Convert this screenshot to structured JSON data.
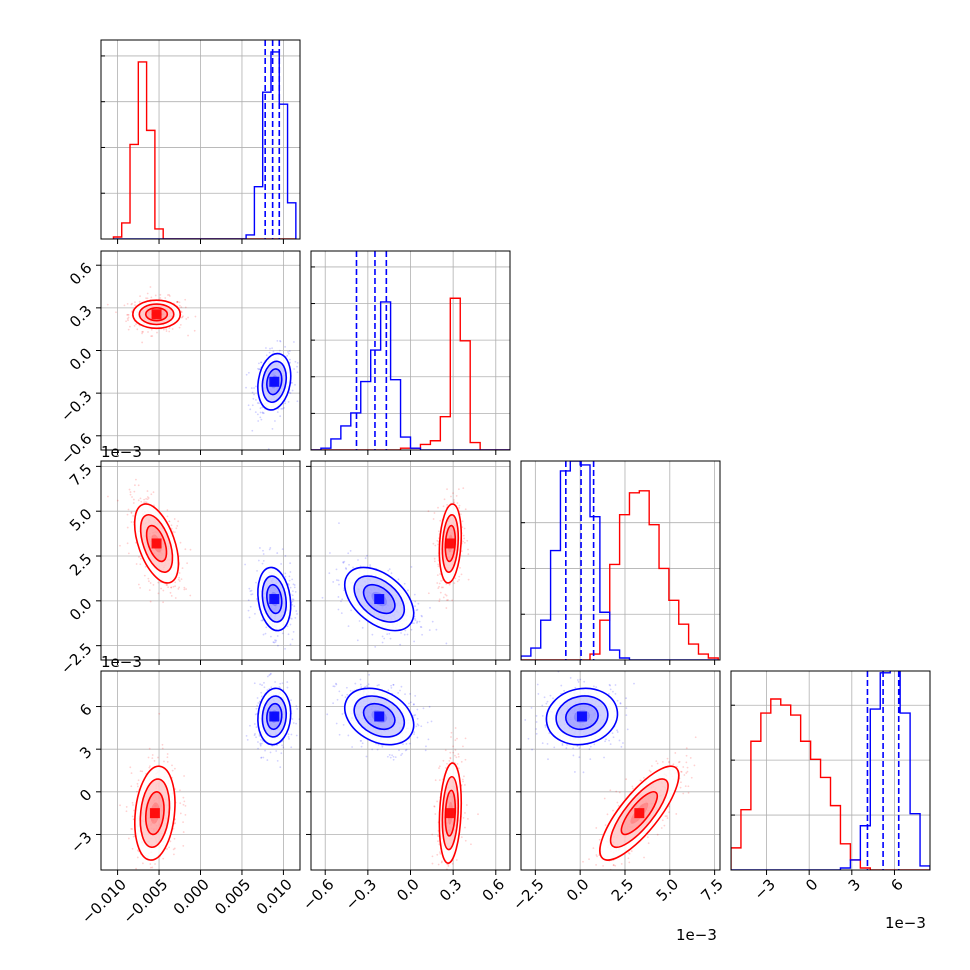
{
  "chart_data": {
    "type": "corner",
    "dimensions": 4,
    "series": [
      {
        "name": "",
        "color": "#ff0000"
      },
      {
        "name": "",
        "color": "#0000ff"
      }
    ],
    "grid": true,
    "tick_labels": {
      "x": [
        [
          "−0.010",
          "−0.005",
          "0.000",
          "0.005",
          "0.010"
        ],
        [
          "−0.6",
          "−0.3",
          "0.0",
          "0.3",
          "0.6"
        ],
        [
          "−2.5",
          "0.0",
          "2.5",
          "5.0",
          "7.5"
        ],
        [
          "−3",
          "0",
          "3",
          "6"
        ]
      ],
      "y": [
        [],
        [
          "−0.6",
          "−0.3",
          "0.0",
          "0.3",
          "0.6"
        ],
        [
          "−2.5",
          "0.0",
          "2.5",
          "5.0",
          "7.5"
        ],
        [
          "−3",
          "0",
          "3",
          "6"
        ]
      ]
    },
    "offset_labels": {
      "row2_y": "1e−3",
      "row3_y": "1e−3",
      "col2_x": "1e−3",
      "col3_x": "1e−3"
    },
    "ranges": [
      [
        -0.012,
        0.012
      ],
      [
        -0.7,
        0.7
      ],
      [
        -3.3,
        7.8
      ],
      [
        -5.5,
        8.5
      ]
    ],
    "marginals": [
      {
        "edges": [
          -0.0105,
          -0.0095,
          -0.0085,
          -0.0075,
          -0.0065,
          -0.0055,
          -0.0045,
          -0.0035,
          -0.0025,
          -0.0015,
          -0.0005,
          0.0005,
          0.0015,
          0.0025,
          0.0035,
          0.0045,
          0.0055,
          0.0065,
          0.0075,
          0.0085,
          0.0095,
          0.0105,
          0.0115
        ],
        "red": [
          0.01,
          0.08,
          0.47,
          0.88,
          0.54,
          0.05,
          0.0,
          0.0,
          0,
          0,
          0,
          0,
          0,
          0,
          0,
          0,
          0,
          0,
          0,
          0,
          0,
          0
        ],
        "blue": [
          0,
          0,
          0,
          0,
          0,
          0,
          0,
          0,
          0,
          0,
          0,
          0,
          0,
          0,
          0,
          0,
          0.02,
          0.26,
          0.73,
          0.93,
          0.67,
          0.18
        ],
        "blue_quantiles": [
          0.0078,
          0.0087,
          0.0095
        ]
      },
      {
        "edges": [
          -0.7,
          -0.63,
          -0.56,
          -0.49,
          -0.42,
          -0.35,
          -0.28,
          -0.21,
          -0.14,
          -0.07,
          0.0,
          0.07,
          0.14,
          0.21,
          0.28,
          0.35,
          0.42,
          0.49,
          0.56,
          0.63,
          0.7
        ],
        "red": [
          0,
          0,
          0,
          0,
          0,
          0,
          0,
          0,
          0.0,
          0.01,
          0.01,
          0.03,
          0.05,
          0.18,
          0.82,
          0.59,
          0.04,
          0.0,
          0,
          0
        ],
        "blue": [
          0,
          0.01,
          0.06,
          0.13,
          0.2,
          0.37,
          0.54,
          0.8,
          0.38,
          0.07,
          0.01,
          0,
          0,
          0,
          0,
          0,
          0,
          0,
          0,
          0
        ],
        "blue_quantiles": [
          -0.38,
          -0.25,
          -0.17
        ]
      },
      {
        "edges": [
          -3.3,
          -2.75,
          -2.2,
          -1.65,
          -1.1,
          -0.55,
          0.0,
          0.55,
          1.1,
          1.65,
          2.2,
          2.75,
          3.3,
          3.85,
          4.4,
          4.95,
          5.5,
          6.05,
          6.6,
          7.15,
          7.7
        ],
        "red": [
          0,
          0,
          0,
          0,
          0,
          0,
          0,
          0.03,
          0.2,
          0.48,
          0.73,
          0.84,
          0.85,
          0.68,
          0.46,
          0.3,
          0.18,
          0.08,
          0.03,
          0.01
        ],
        "blue": [
          0.02,
          0.06,
          0.2,
          0.55,
          0.95,
          1.0,
          0.98,
          0.72,
          0.24,
          0.05,
          0.01,
          0,
          0,
          0,
          0,
          0,
          0,
          0,
          0,
          0
        ],
        "blue_quantiles": [
          -0.8,
          0.05,
          0.75
        ]
      },
      {
        "edges": [
          -5.5,
          -4.8,
          -4.1,
          -3.4,
          -2.7,
          -2.0,
          -1.3,
          -0.6,
          0.1,
          0.8,
          1.5,
          2.2,
          2.9,
          3.6,
          4.3,
          5.0,
          5.7,
          6.4,
          7.1,
          7.8,
          8.5
        ],
        "red": [
          0.11,
          0.3,
          0.64,
          0.78,
          0.85,
          0.82,
          0.77,
          0.64,
          0.55,
          0.46,
          0.32,
          0.13,
          0.05,
          0.01,
          0,
          0,
          0,
          0,
          0,
          0
        ],
        "blue": [
          0,
          0,
          0,
          0,
          0,
          0,
          0,
          0,
          0,
          0,
          0,
          0.01,
          0.05,
          0.22,
          0.8,
          0.98,
          1.0,
          0.78,
          0.28,
          0.02
        ],
        "blue_quantiles": [
          4.1,
          5.2,
          6.3
        ]
      }
    ],
    "pairs": [
      {
        "row": 1,
        "col": 0,
        "red": {
          "mx": -0.0053,
          "my": 0.255,
          "sx": 0.0013,
          "sy": 0.045,
          "rho": 0.0
        },
        "blue": {
          "mx": 0.0089,
          "my": -0.22,
          "sx": 0.0009,
          "sy": 0.09,
          "rho": 0.2
        }
      },
      {
        "row": 2,
        "col": 0,
        "red": {
          "mx": -0.0053,
          "my": 3.2,
          "sx": 0.0012,
          "sy": 1.0,
          "rho": -0.5
        },
        "blue": {
          "mx": 0.0089,
          "my": 0.1,
          "sx": 0.0009,
          "sy": 0.8,
          "rho": -0.2
        }
      },
      {
        "row": 2,
        "col": 1,
        "red": {
          "mx": 0.28,
          "my": 3.2,
          "sx": 0.035,
          "sy": 1.0,
          "rho": 0.2
        },
        "blue": {
          "mx": -0.22,
          "my": 0.1,
          "sx": 0.11,
          "sy": 0.8,
          "rho": -0.45
        }
      },
      {
        "row": 3,
        "col": 0,
        "red": {
          "mx": -0.0055,
          "my": -1.5,
          "sx": 0.0011,
          "sy": 1.5,
          "rho": 0.2
        },
        "blue": {
          "mx": 0.0089,
          "my": 5.3,
          "sx": 0.0009,
          "sy": 0.9,
          "rho": 0.1
        }
      },
      {
        "row": 3,
        "col": 1,
        "red": {
          "mx": 0.28,
          "my": -1.5,
          "sx": 0.035,
          "sy": 1.6,
          "rho": 0.2
        },
        "blue": {
          "mx": -0.22,
          "my": 5.3,
          "sx": 0.11,
          "sy": 0.9,
          "rho": -0.3
        }
      },
      {
        "row": 3,
        "col": 2,
        "red": {
          "mx": 3.3,
          "my": -1.5,
          "sx": 1.0,
          "sy": 1.5,
          "rho": 0.8
        },
        "blue": {
          "mx": 0.1,
          "my": 5.3,
          "sx": 0.9,
          "sy": 0.9,
          "rho": 0.1
        }
      }
    ]
  }
}
